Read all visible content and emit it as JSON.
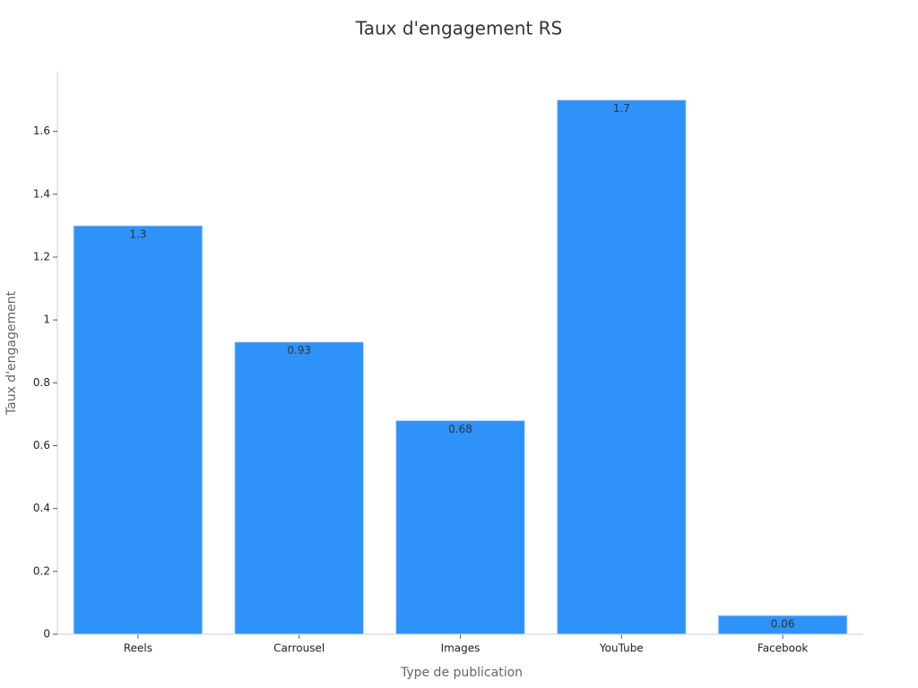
{
  "chart_data": {
    "type": "bar",
    "title": "Taux d'engagement RS",
    "x_label": "Type de publication",
    "y_label": "Taux d'engagement",
    "categories": [
      "Reels",
      "Carrousel",
      "Images",
      "YouTube",
      "Facebook"
    ],
    "values": [
      1.3,
      0.93,
      0.68,
      1.7,
      0.06
    ],
    "color": "#2f92f8",
    "ylim": [
      0,
      1.79
    ],
    "yticks": [
      0,
      0.2,
      0.4,
      0.6,
      0.8,
      1,
      1.2,
      1.4,
      1.6
    ],
    "grid": false
  }
}
